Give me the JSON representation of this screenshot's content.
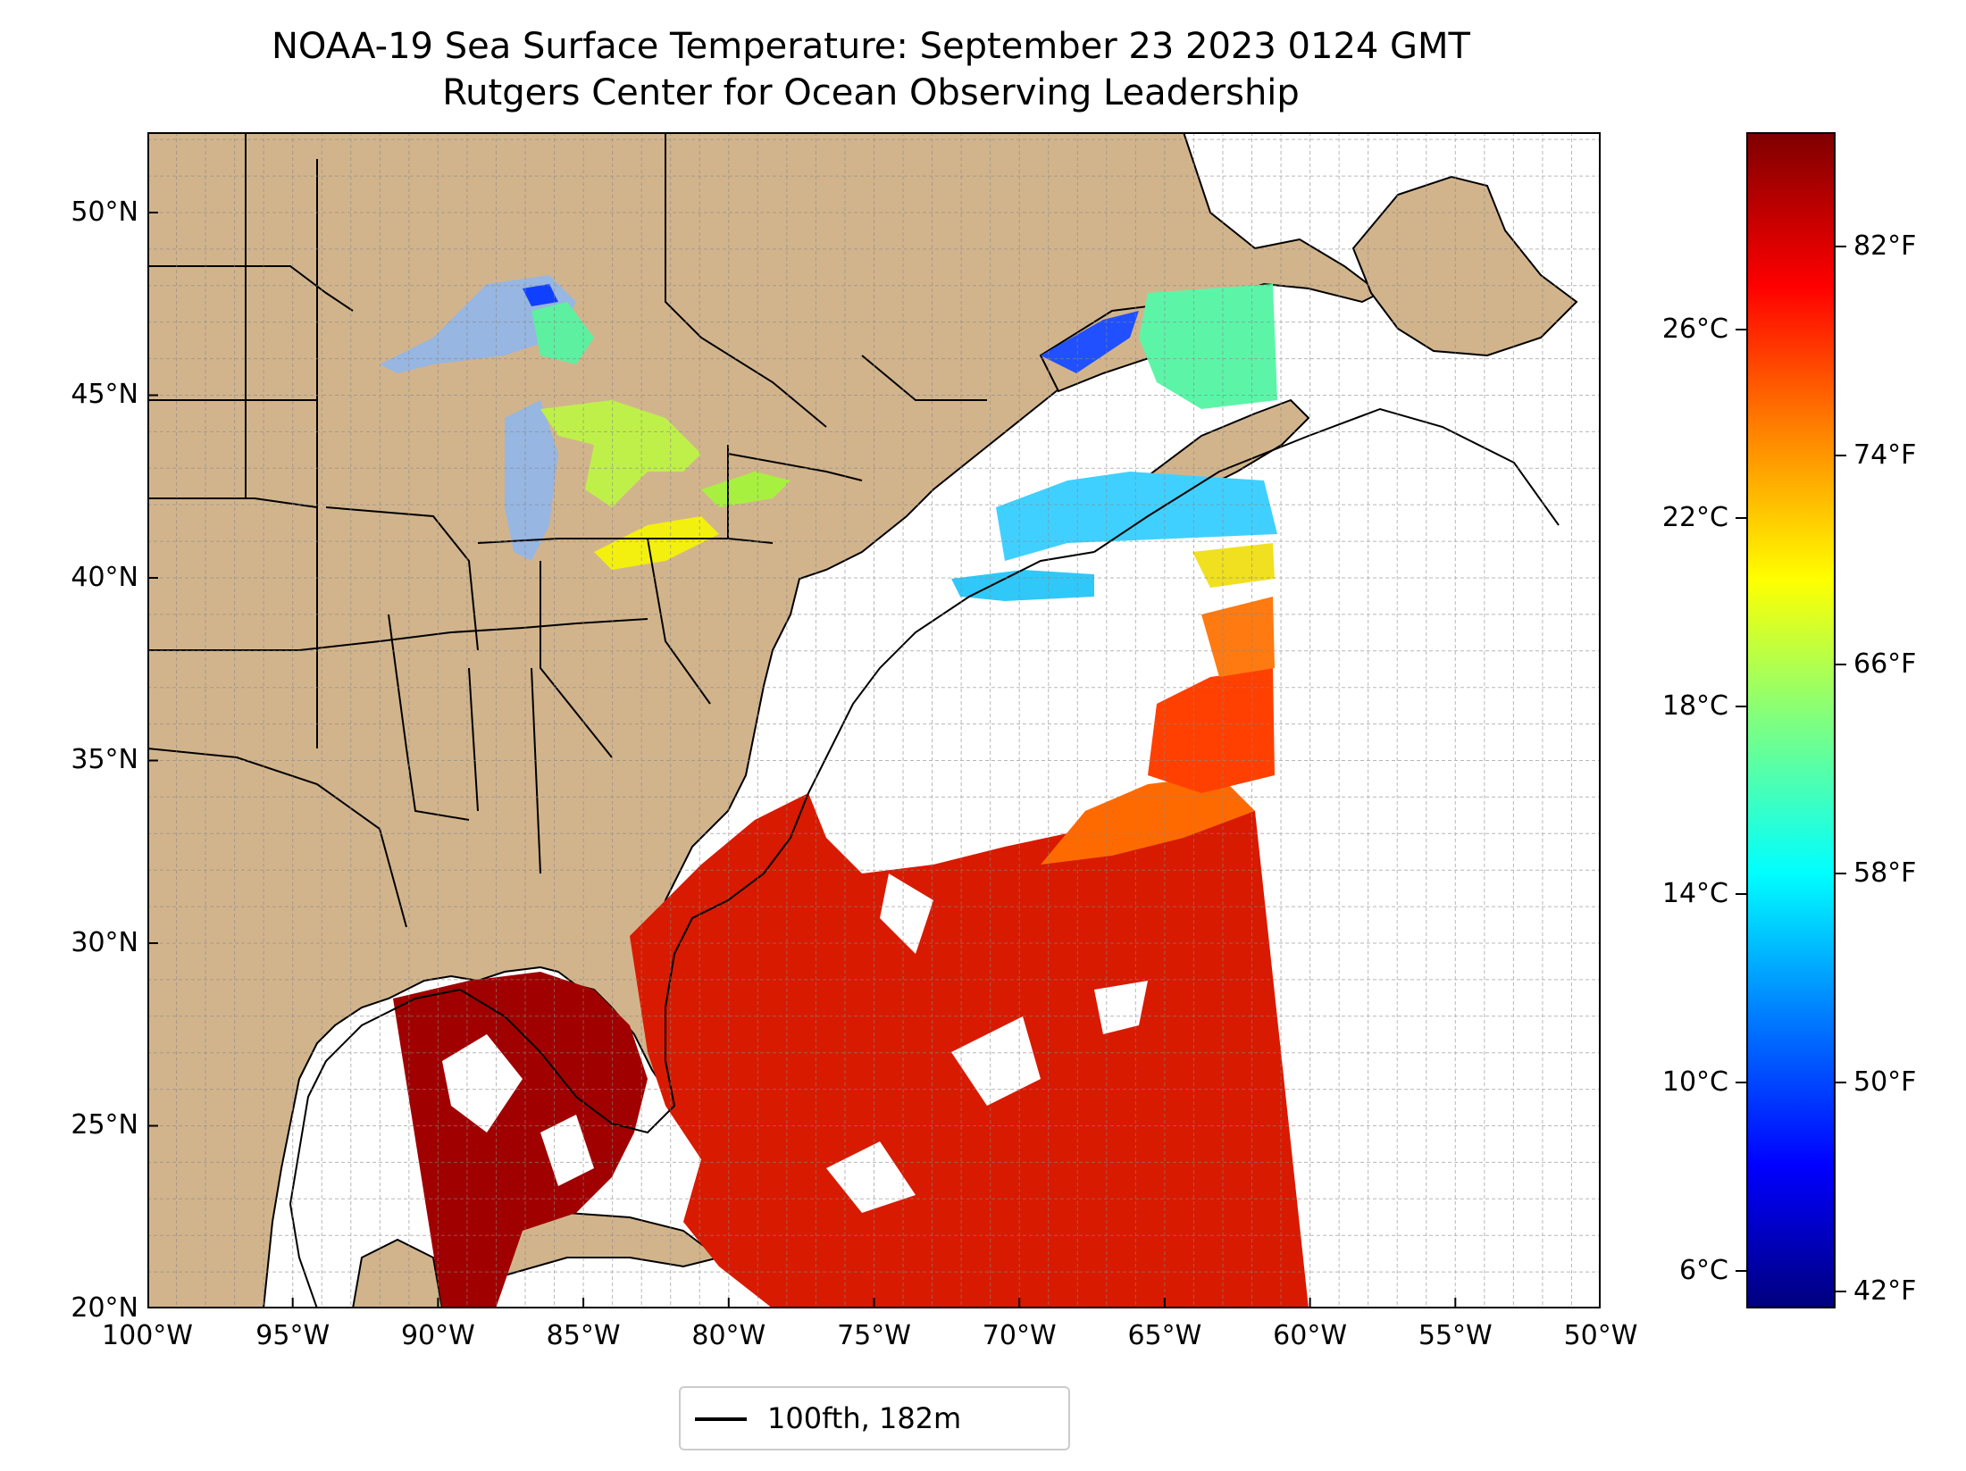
{
  "title": "NOAA-19 Sea Surface Temperature: September 23 2023 0124 GMT",
  "subtitle": "Rutgers Center for Ocean Observing Leadership",
  "map": {
    "lon_range": [
      -100,
      -50
    ],
    "lat_range": [
      20,
      52.2
    ],
    "land_color": "#d2b48c",
    "ocean_color": "#ffffff",
    "lake_color": "#97b6e1",
    "gridlines": true
  },
  "axes": {
    "lat_ticks": [
      {
        "value": 20,
        "label": "20°N"
      },
      {
        "value": 25,
        "label": "25°N"
      },
      {
        "value": 30,
        "label": "30°N"
      },
      {
        "value": 35,
        "label": "35°N"
      },
      {
        "value": 40,
        "label": "40°N"
      },
      {
        "value": 45,
        "label": "45°N"
      },
      {
        "value": 50,
        "label": "50°N"
      }
    ],
    "lon_ticks": [
      {
        "value": -100,
        "label": "100°W"
      },
      {
        "value": -95,
        "label": "95°W"
      },
      {
        "value": -90,
        "label": "90°W"
      },
      {
        "value": -85,
        "label": "85°W"
      },
      {
        "value": -80,
        "label": "80°W"
      },
      {
        "value": -75,
        "label": "75°W"
      },
      {
        "value": -70,
        "label": "70°W"
      },
      {
        "value": -65,
        "label": "65°W"
      },
      {
        "value": -60,
        "label": "60°W"
      },
      {
        "value": -55,
        "label": "55°W"
      },
      {
        "value": -50,
        "label": "50°W"
      }
    ]
  },
  "colorbar": {
    "colormap": "jet",
    "range_c": [
      5.2,
      30.2
    ],
    "celsius_ticks": [
      {
        "value": 6,
        "label": "6°C"
      },
      {
        "value": 10,
        "label": "10°C"
      },
      {
        "value": 14,
        "label": "14°C"
      },
      {
        "value": 18,
        "label": "18°C"
      },
      {
        "value": 22,
        "label": "22°C"
      },
      {
        "value": 26,
        "label": "26°C"
      }
    ],
    "fahrenheit_ticks": [
      {
        "value": 42,
        "label": "42°F"
      },
      {
        "value": 50,
        "label": "50°F"
      },
      {
        "value": 58,
        "label": "58°F"
      },
      {
        "value": 66,
        "label": "66°F"
      },
      {
        "value": 74,
        "label": "74°F"
      },
      {
        "value": 82,
        "label": "82°F"
      }
    ]
  },
  "legend": {
    "label": "100fth, 182m",
    "line_color": "#000000"
  }
}
